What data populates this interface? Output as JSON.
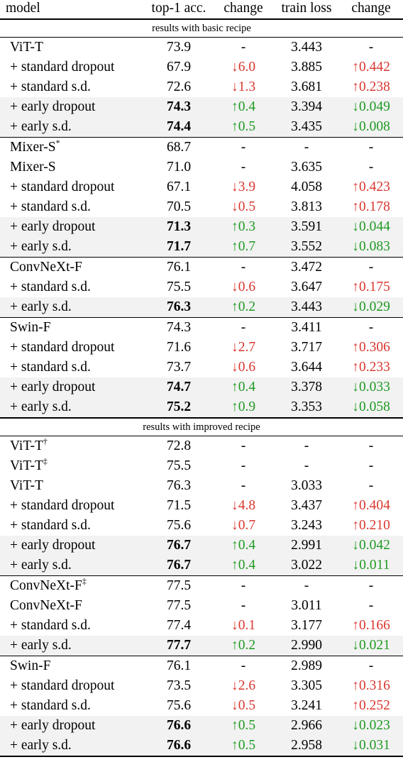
{
  "headers": {
    "model": "model",
    "acc": "top-1 acc.",
    "change1": "change",
    "loss": "train loss",
    "change2": "change"
  },
  "colors": {
    "increase": "#d9372f",
    "decrease": "#1f9a22",
    "highlight_row": "#f2f2f2"
  },
  "sections": [
    {
      "title": "results with basic recipe",
      "groups": [
        [
          {
            "model": "ViT-T",
            "sup": "",
            "acc": "73.9",
            "c1": "-",
            "d1": "",
            "loss": "3.443",
            "c2": "-",
            "d2": "",
            "bold": false,
            "hl": false
          },
          {
            "model": "+ standard dropout",
            "sup": "",
            "acc": "67.9",
            "c1": "↓6.0",
            "d1": "red",
            "loss": "3.885",
            "c2": "↑0.442",
            "d2": "red",
            "bold": false,
            "hl": false
          },
          {
            "model": "+ standard s.d.",
            "sup": "",
            "acc": "72.6",
            "c1": "↓1.3",
            "d1": "red",
            "loss": "3.681",
            "c2": "↑0.238",
            "d2": "red",
            "bold": false,
            "hl": false
          },
          {
            "model": "+ early dropout",
            "sup": "",
            "acc": "74.3",
            "c1": "↑0.4",
            "d1": "green",
            "loss": "3.394",
            "c2": "↓0.049",
            "d2": "green",
            "bold": true,
            "hl": true
          },
          {
            "model": "+ early s.d.",
            "sup": "",
            "acc": "74.4",
            "c1": "↑0.5",
            "d1": "green",
            "loss": "3.435",
            "c2": "↓0.008",
            "d2": "green",
            "bold": true,
            "hl": true
          }
        ],
        [
          {
            "model": "Mixer-S",
            "sup": "*",
            "acc": "68.7",
            "c1": "-",
            "d1": "",
            "loss": "-",
            "c2": "-",
            "d2": "",
            "bold": false,
            "hl": false
          },
          {
            "model": "Mixer-S",
            "sup": "",
            "acc": "71.0",
            "c1": "-",
            "d1": "",
            "loss": "3.635",
            "c2": "-",
            "d2": "",
            "bold": false,
            "hl": false
          },
          {
            "model": "+ standard dropout",
            "sup": "",
            "acc": "67.1",
            "c1": "↓3.9",
            "d1": "red",
            "loss": "4.058",
            "c2": "↑0.423",
            "d2": "red",
            "bold": false,
            "hl": false
          },
          {
            "model": "+ standard s.d.",
            "sup": "",
            "acc": "70.5",
            "c1": "↓0.5",
            "d1": "red",
            "loss": "3.813",
            "c2": "↑0.178",
            "d2": "red",
            "bold": false,
            "hl": false
          },
          {
            "model": "+ early dropout",
            "sup": "",
            "acc": "71.3",
            "c1": "↑0.3",
            "d1": "green",
            "loss": "3.591",
            "c2": "↓0.044",
            "d2": "green",
            "bold": true,
            "hl": true
          },
          {
            "model": "+ early s.d.",
            "sup": "",
            "acc": "71.7",
            "c1": "↑0.7",
            "d1": "green",
            "loss": "3.552",
            "c2": "↓0.083",
            "d2": "green",
            "bold": true,
            "hl": true
          }
        ],
        [
          {
            "model": "ConvNeXt-F",
            "sup": "",
            "acc": "76.1",
            "c1": "-",
            "d1": "",
            "loss": "3.472",
            "c2": "-",
            "d2": "",
            "bold": false,
            "hl": false
          },
          {
            "model": "+ standard s.d.",
            "sup": "",
            "acc": "75.5",
            "c1": "↓0.6",
            "d1": "red",
            "loss": "3.647",
            "c2": "↑0.175",
            "d2": "red",
            "bold": false,
            "hl": false
          },
          {
            "model": "+ early s.d.",
            "sup": "",
            "acc": "76.3",
            "c1": "↑0.2",
            "d1": "green",
            "loss": "3.443",
            "c2": "↓0.029",
            "d2": "green",
            "bold": true,
            "hl": true
          }
        ],
        [
          {
            "model": "Swin-F",
            "sup": "",
            "acc": "74.3",
            "c1": "-",
            "d1": "",
            "loss": "3.411",
            "c2": "-",
            "d2": "",
            "bold": false,
            "hl": false
          },
          {
            "model": "+ standard dropout",
            "sup": "",
            "acc": "71.6",
            "c1": "↓2.7",
            "d1": "red",
            "loss": "3.717",
            "c2": "↑0.306",
            "d2": "red",
            "bold": false,
            "hl": false
          },
          {
            "model": "+ standard s.d.",
            "sup": "",
            "acc": "73.7",
            "c1": "↓0.6",
            "d1": "red",
            "loss": "3.644",
            "c2": "↑0.233",
            "d2": "red",
            "bold": false,
            "hl": false
          },
          {
            "model": "+ early dropout",
            "sup": "",
            "acc": "74.7",
            "c1": "↑0.4",
            "d1": "green",
            "loss": "3.378",
            "c2": "↓0.033",
            "d2": "green",
            "bold": true,
            "hl": true
          },
          {
            "model": "+ early s.d.",
            "sup": "",
            "acc": "75.2",
            "c1": "↑0.9",
            "d1": "green",
            "loss": "3.353",
            "c2": "↓0.058",
            "d2": "green",
            "bold": true,
            "hl": true
          }
        ]
      ]
    },
    {
      "title": "results with improved recipe",
      "groups": [
        [
          {
            "model": "ViT-T",
            "sup": "†",
            "acc": "72.8",
            "c1": "-",
            "d1": "",
            "loss": "-",
            "c2": "-",
            "d2": "",
            "bold": false,
            "hl": false
          },
          {
            "model": "ViT-T",
            "sup": "‡",
            "acc": "75.5",
            "c1": "-",
            "d1": "",
            "loss": "-",
            "c2": "-",
            "d2": "",
            "bold": false,
            "hl": false
          },
          {
            "model": "ViT-T",
            "sup": "",
            "acc": "76.3",
            "c1": "-",
            "d1": "",
            "loss": "3.033",
            "c2": "-",
            "d2": "",
            "bold": false,
            "hl": false
          },
          {
            "model": "+ standard dropout",
            "sup": "",
            "acc": "71.5",
            "c1": "↓4.8",
            "d1": "red",
            "loss": "3.437",
            "c2": "↑0.404",
            "d2": "red",
            "bold": false,
            "hl": false
          },
          {
            "model": "+ standard s.d.",
            "sup": "",
            "acc": "75.6",
            "c1": "↓0.7",
            "d1": "red",
            "loss": "3.243",
            "c2": "↑0.210",
            "d2": "red",
            "bold": false,
            "hl": false
          },
          {
            "model": "+ early dropout",
            "sup": "",
            "acc": "76.7",
            "c1": "↑0.4",
            "d1": "green",
            "loss": "2.991",
            "c2": "↓0.042",
            "d2": "green",
            "bold": true,
            "hl": true
          },
          {
            "model": "+ early s.d.",
            "sup": "",
            "acc": "76.7",
            "c1": "↑0.4",
            "d1": "green",
            "loss": "3.022",
            "c2": "↓0.011",
            "d2": "green",
            "bold": true,
            "hl": true
          }
        ],
        [
          {
            "model": "ConvNeXt-F",
            "sup": "‡",
            "acc": "77.5",
            "c1": "-",
            "d1": "",
            "loss": "-",
            "c2": "-",
            "d2": "",
            "bold": false,
            "hl": false
          },
          {
            "model": "ConvNeXt-F",
            "sup": "",
            "acc": "77.5",
            "c1": "-",
            "d1": "",
            "loss": "3.011",
            "c2": "-",
            "d2": "",
            "bold": false,
            "hl": false
          },
          {
            "model": "+ standard s.d.",
            "sup": "",
            "acc": "77.4",
            "c1": "↓0.1",
            "d1": "red",
            "loss": "3.177",
            "c2": "↑0.166",
            "d2": "red",
            "bold": false,
            "hl": false
          },
          {
            "model": "+ early s.d.",
            "sup": "",
            "acc": "77.7",
            "c1": "↑0.2",
            "d1": "green",
            "loss": "2.990",
            "c2": "↓0.021",
            "d2": "green",
            "bold": true,
            "hl": true
          }
        ],
        [
          {
            "model": "Swin-F",
            "sup": "",
            "acc": "76.1",
            "c1": "-",
            "d1": "",
            "loss": "2.989",
            "c2": "-",
            "d2": "",
            "bold": false,
            "hl": false
          },
          {
            "model": "+ standard dropout",
            "sup": "",
            "acc": "73.5",
            "c1": "↓2.6",
            "d1": "red",
            "loss": "3.305",
            "c2": "↑0.316",
            "d2": "red",
            "bold": false,
            "hl": false
          },
          {
            "model": "+ standard s.d.",
            "sup": "",
            "acc": "75.6",
            "c1": "↓0.5",
            "d1": "red",
            "loss": "3.241",
            "c2": "↑0.252",
            "d2": "red",
            "bold": false,
            "hl": false
          },
          {
            "model": "+ early dropout",
            "sup": "",
            "acc": "76.6",
            "c1": "↑0.5",
            "d1": "green",
            "loss": "2.966",
            "c2": "↓0.023",
            "d2": "green",
            "bold": true,
            "hl": true
          },
          {
            "model": "+ early s.d.",
            "sup": "",
            "acc": "76.6",
            "c1": "↑0.5",
            "d1": "green",
            "loss": "2.958",
            "c2": "↓0.031",
            "d2": "green",
            "bold": true,
            "hl": true
          }
        ]
      ]
    }
  ]
}
